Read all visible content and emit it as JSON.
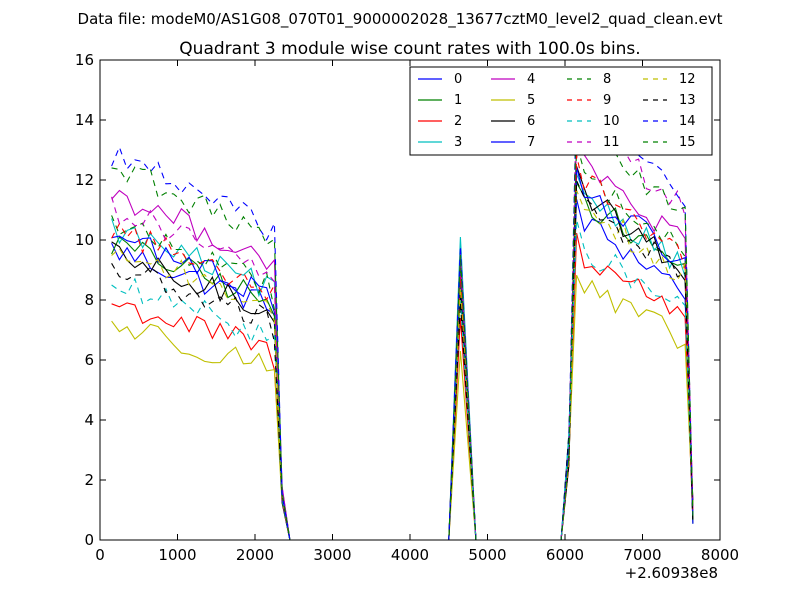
{
  "figure": {
    "suptitle": "Data file: modeM0/AS1G08_070T01_9000002028_13677cztM0_level2_quad_clean.evt"
  },
  "chart_data": {
    "type": "line",
    "title": "Quadrant 3 module wise count rates with 100.0s bins.",
    "xlabel": "",
    "ylabel": "",
    "x_offset_label": "+2.60938e8",
    "xlim": [
      0,
      8000
    ],
    "ylim": [
      0,
      16
    ],
    "xticks": [
      0,
      1000,
      2000,
      3000,
      4000,
      5000,
      6000,
      7000,
      8000
    ],
    "yticks": [
      0,
      2,
      4,
      6,
      8,
      10,
      12,
      14,
      16
    ],
    "grid": false,
    "legend_position": "top-right",
    "legend_columns": 4,
    "segments": [
      {
        "x_start": 150,
        "x_end": 2250,
        "x_step": 100
      },
      {
        "x_start": 2250,
        "x_end": 2450,
        "x_values": [
          2250,
          2350,
          2450
        ]
      },
      {
        "peak_x": [
          4500,
          4650,
          4850
        ]
      },
      {
        "x_start": 5950,
        "x_end": 7650,
        "x_step": 100
      }
    ],
    "series": [
      {
        "name": "0",
        "color": "#0000ff",
        "dash": "solid",
        "level1": 9.7,
        "peak": 8.6,
        "level2": 9.6
      },
      {
        "name": "1",
        "color": "#008000",
        "dash": "solid",
        "level1": 9.9,
        "peak": 8.9,
        "level2": 10.3
      },
      {
        "name": "2",
        "color": "#ff0000",
        "dash": "solid",
        "level1": 7.9,
        "peak": 7.4,
        "level2": 8.6
      },
      {
        "name": "3",
        "color": "#00bfbf",
        "dash": "solid",
        "level1": 10.4,
        "peak": 10.1,
        "level2": 10.5
      },
      {
        "name": "4",
        "color": "#bf00bf",
        "dash": "solid",
        "level1": 11.6,
        "peak": 9.6,
        "level2": 11.3
      },
      {
        "name": "5",
        "color": "#bfbf00",
        "dash": "solid",
        "level1": 7.2,
        "peak": 6.3,
        "level2": 7.6
      },
      {
        "name": "6",
        "color": "#000000",
        "dash": "solid",
        "level1": 9.5,
        "peak": 8.3,
        "level2": 10.4
      },
      {
        "name": "7",
        "color": "#0000ff",
        "dash": "solid",
        "level1": 10.2,
        "peak": 9.1,
        "level2": 10.6
      },
      {
        "name": "8",
        "color": "#008000",
        "dash": "dashed",
        "level1": 10.6,
        "peak": 9.3,
        "level2": 11.0
      },
      {
        "name": "9",
        "color": "#ff0000",
        "dash": "dashed",
        "level1": 10.4,
        "peak": 8.8,
        "level2": 10.9
      },
      {
        "name": "10",
        "color": "#00bfbf",
        "dash": "dashed",
        "level1": 8.5,
        "peak": 8.0,
        "level2": 8.8
      },
      {
        "name": "11",
        "color": "#bf00bf",
        "dash": "dashed",
        "level1": 11.1,
        "peak": 9.3,
        "level2": 12.6
      },
      {
        "name": "12",
        "color": "#bfbf00",
        "dash": "dashed",
        "level1": 9.7,
        "peak": 8.4,
        "level2": 10.1
      },
      {
        "name": "13",
        "color": "#000000",
        "dash": "dashed",
        "level1": 9.1,
        "peak": 7.9,
        "level2": 10.1
      },
      {
        "name": "14",
        "color": "#0000ff",
        "dash": "dashed",
        "level1": 12.9,
        "peak": 9.8,
        "level2": 13.0
      },
      {
        "name": "15",
        "color": "#008000",
        "dash": "dashed",
        "level1": 12.5,
        "peak": 9.5,
        "level2": 12.3
      }
    ]
  }
}
